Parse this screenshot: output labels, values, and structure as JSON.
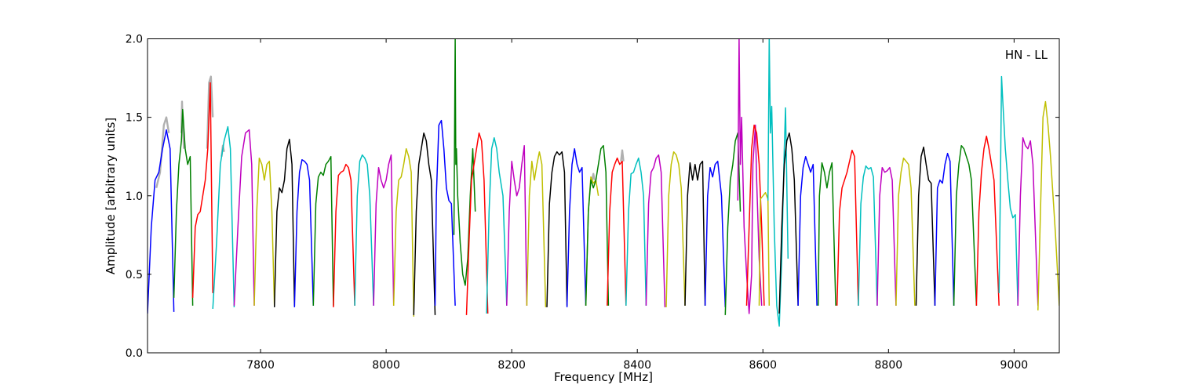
{
  "chart_data": {
    "type": "line",
    "xlabel": "Frequency [MHz]",
    "ylabel": "Amplitude [arbitrary units]",
    "annotation": "HN - LL",
    "annotation_position": "top-right",
    "xlim": [
      7620,
      9072
    ],
    "ylim": [
      0.0,
      2.0
    ],
    "xticks": [
      7800,
      8000,
      8200,
      8400,
      8600,
      8800,
      9000
    ],
    "xtick_labels": [
      "7800",
      "8000",
      "8200",
      "8400",
      "8600",
      "8800",
      "9000"
    ],
    "yticks": [
      0.0,
      0.5,
      1.0,
      1.5,
      2.0
    ],
    "ytick_labels": [
      "0.0",
      "0.5",
      "1.0",
      "1.5",
      "2.0"
    ],
    "grid": false,
    "colors": [
      "#0000ff",
      "#008000",
      "#ff0000",
      "#00bfbf",
      "#bf00bf",
      "#bfbf00",
      "#000000"
    ],
    "underlay_color": "#b0b0b0",
    "series": [
      {
        "color": "#0000ff",
        "x": [
          7620,
          7626,
          7632,
          7638,
          7644,
          7650,
          7656,
          7662
        ],
        "y": [
          0.25,
          0.8,
          1.1,
          1.15,
          1.3,
          1.42,
          1.3,
          0.26
        ]
      },
      {
        "color": "#008000",
        "x": [
          7662,
          7666,
          7670,
          7674,
          7676,
          7680,
          7684,
          7688,
          7692
        ],
        "y": [
          0.35,
          0.9,
          1.2,
          1.35,
          1.55,
          1.3,
          1.2,
          1.25,
          0.3
        ]
      },
      {
        "color": "#ff0000",
        "x": [
          7692,
          7696,
          7700,
          7704,
          7708,
          7712,
          7716,
          7720,
          7724
        ],
        "y": [
          0.35,
          0.8,
          0.88,
          0.9,
          1.0,
          1.1,
          1.3,
          1.72,
          0.38
        ]
      },
      {
        "color": "#00bfbf",
        "x": [
          7724,
          7730,
          7736,
          7742,
          7748,
          7752,
          7758
        ],
        "y": [
          0.28,
          0.7,
          1.2,
          1.35,
          1.44,
          1.3,
          0.29
        ]
      },
      {
        "color": "#bf00bf",
        "x": [
          7758,
          7764,
          7770,
          7776,
          7782,
          7786,
          7790
        ],
        "y": [
          0.3,
          0.8,
          1.25,
          1.4,
          1.42,
          1.2,
          0.3
        ]
      },
      {
        "color": "#bfbf00",
        "x": [
          7790,
          7794,
          7798,
          7802,
          7806,
          7810,
          7814,
          7818,
          7822
        ],
        "y": [
          0.3,
          0.9,
          1.24,
          1.2,
          1.1,
          1.2,
          1.22,
          0.9,
          0.3
        ]
      },
      {
        "color": "#000000",
        "x": [
          7822,
          7826,
          7830,
          7834,
          7838,
          7842,
          7846,
          7850,
          7854
        ],
        "y": [
          0.29,
          0.9,
          1.05,
          1.02,
          1.1,
          1.3,
          1.36,
          1.2,
          0.3
        ]
      },
      {
        "color": "#0000ff",
        "x": [
          7854,
          7858,
          7862,
          7866,
          7870,
          7874,
          7878,
          7884
        ],
        "y": [
          0.29,
          0.9,
          1.15,
          1.23,
          1.22,
          1.2,
          1.1,
          0.3
        ]
      },
      {
        "color": "#008000",
        "x": [
          7884,
          7888,
          7892,
          7896,
          7900,
          7904,
          7908,
          7912,
          7916
        ],
        "y": [
          0.3,
          0.95,
          1.12,
          1.15,
          1.13,
          1.2,
          1.22,
          1.25,
          0.3
        ]
      },
      {
        "color": "#ff0000",
        "x": [
          7916,
          7920,
          7924,
          7928,
          7932,
          7936,
          7940,
          7944,
          7950
        ],
        "y": [
          0.29,
          0.9,
          1.13,
          1.15,
          1.16,
          1.2,
          1.18,
          1.1,
          0.3
        ]
      },
      {
        "color": "#00bfbf",
        "x": [
          7950,
          7954,
          7958,
          7962,
          7966,
          7970,
          7974,
          7980
        ],
        "y": [
          0.3,
          1.0,
          1.22,
          1.26,
          1.24,
          1.2,
          1.0,
          0.3
        ]
      },
      {
        "color": "#bf00bf",
        "x": [
          7980,
          7984,
          7988,
          7992,
          7996,
          8000,
          8004,
          8008,
          8012
        ],
        "y": [
          0.3,
          0.95,
          1.18,
          1.1,
          1.05,
          1.1,
          1.2,
          1.26,
          0.3
        ]
      },
      {
        "color": "#bfbf00",
        "x": [
          8012,
          8016,
          8020,
          8024,
          8028,
          8032,
          8036,
          8040,
          8044
        ],
        "y": [
          0.3,
          0.9,
          1.1,
          1.12,
          1.2,
          1.3,
          1.25,
          1.15,
          0.23
        ]
      },
      {
        "color": "#000000",
        "x": [
          8044,
          8048,
          8052,
          8056,
          8060,
          8064,
          8068,
          8072,
          8078
        ],
        "y": [
          0.24,
          0.9,
          1.2,
          1.3,
          1.4,
          1.35,
          1.2,
          1.1,
          0.24
        ]
      },
      {
        "color": "#0000ff",
        "x": [
          8078,
          8080,
          8084,
          8088,
          8092,
          8096,
          8100,
          8104,
          8110
        ],
        "y": [
          0.3,
          1.0,
          1.45,
          1.48,
          1.3,
          1.05,
          0.97,
          0.95,
          0.3
        ]
      },
      {
        "color": "#008000",
        "x": [
          8108,
          8110,
          8111,
          8112,
          8114,
          8118,
          8122,
          8126,
          8130,
          8134,
          8138,
          8142
        ],
        "y": [
          0.75,
          2.0,
          1.2,
          1.3,
          1.0,
          0.7,
          0.5,
          0.43,
          0.6,
          1.0,
          1.3,
          0.9
        ]
      },
      {
        "color": "#ff0000",
        "x": [
          8128,
          8132,
          8136,
          8140,
          8144,
          8148,
          8152,
          8156,
          8162
        ],
        "y": [
          0.24,
          0.7,
          1.1,
          1.2,
          1.3,
          1.4,
          1.35,
          1.1,
          0.25
        ]
      },
      {
        "color": "#00bfbf",
        "x": [
          8160,
          8164,
          8168,
          8172,
          8176,
          8180,
          8186,
          8192
        ],
        "y": [
          0.25,
          0.9,
          1.3,
          1.37,
          1.3,
          1.15,
          1.0,
          0.3
        ]
      },
      {
        "color": "#bf00bf",
        "x": [
          8192,
          8196,
          8200,
          8204,
          8208,
          8212,
          8216,
          8220,
          8224
        ],
        "y": [
          0.3,
          0.9,
          1.22,
          1.1,
          1.0,
          1.05,
          1.2,
          1.32,
          0.3
        ]
      },
      {
        "color": "#bfbf00",
        "x": [
          8224,
          8228,
          8232,
          8236,
          8240,
          8244,
          8248,
          8254
        ],
        "y": [
          0.3,
          1.0,
          1.22,
          1.1,
          1.2,
          1.28,
          1.2,
          0.29
        ]
      },
      {
        "color": "#000000",
        "x": [
          8256,
          8260,
          8264,
          8268,
          8272,
          8276,
          8280,
          8284,
          8288
        ],
        "y": [
          0.29,
          0.95,
          1.15,
          1.25,
          1.28,
          1.26,
          1.28,
          1.15,
          0.3
        ]
      },
      {
        "color": "#0000ff",
        "x": [
          8288,
          8292,
          8296,
          8300,
          8304,
          8308,
          8312,
          8318
        ],
        "y": [
          0.29,
          0.9,
          1.2,
          1.3,
          1.2,
          1.15,
          1.18,
          0.3
        ]
      },
      {
        "color": "#bfbf00",
        "x": [
          8318,
          8322,
          8326,
          8330,
          8334,
          8338
        ],
        "y": [
          0.3,
          0.9,
          1.12,
          1.08,
          1.1,
          1.0
        ]
      },
      {
        "color": "#008000",
        "x": [
          8318,
          8322,
          8326,
          8330,
          8334,
          8338,
          8342,
          8346,
          8350,
          8354
        ],
        "y": [
          0.3,
          0.9,
          1.1,
          1.05,
          1.1,
          1.2,
          1.3,
          1.32,
          1.15,
          0.3
        ]
      },
      {
        "color": "#ff0000",
        "x": [
          8352,
          8356,
          8360,
          8364,
          8368,
          8372,
          8376,
          8382
        ],
        "y": [
          0.3,
          0.9,
          1.15,
          1.2,
          1.24,
          1.2,
          1.22,
          0.3
        ]
      },
      {
        "color": "#00bfbf",
        "x": [
          8382,
          8386,
          8390,
          8394,
          8398,
          8402,
          8406,
          8410,
          8414
        ],
        "y": [
          0.3,
          0.9,
          1.14,
          1.15,
          1.2,
          1.24,
          1.15,
          1.0,
          0.3
        ]
      },
      {
        "color": "#bf00bf",
        "x": [
          8414,
          8418,
          8422,
          8426,
          8430,
          8434,
          8438,
          8444
        ],
        "y": [
          0.3,
          0.95,
          1.15,
          1.18,
          1.24,
          1.26,
          1.15,
          0.29
        ]
      },
      {
        "color": "#bfbf00",
        "x": [
          8446,
          8450,
          8454,
          8458,
          8462,
          8466,
          8470,
          8476
        ],
        "y": [
          0.29,
          1.0,
          1.2,
          1.28,
          1.26,
          1.2,
          1.05,
          0.3
        ]
      },
      {
        "color": "#000000",
        "x": [
          8476,
          8480,
          8484,
          8488,
          8492,
          8496,
          8500,
          8504,
          8508
        ],
        "y": [
          0.3,
          1.0,
          1.21,
          1.1,
          1.2,
          1.1,
          1.2,
          1.22,
          0.3
        ]
      },
      {
        "color": "#0000ff",
        "x": [
          8508,
          8512,
          8516,
          8520,
          8524,
          8528,
          8534,
          8540
        ],
        "y": [
          0.3,
          1.0,
          1.18,
          1.12,
          1.2,
          1.22,
          1.0,
          0.29
        ]
      },
      {
        "color": "#008000",
        "x": [
          8540,
          8544,
          8548,
          8552,
          8556,
          8560,
          8564
        ],
        "y": [
          0.24,
          0.8,
          1.1,
          1.2,
          1.35,
          1.4,
          0.9
        ]
      },
      {
        "color": "#bf00bf",
        "x": [
          8560,
          8562,
          8564,
          8566,
          8570,
          8574,
          8578,
          8582,
          8584,
          8588,
          8590,
          8594,
          8598
        ],
        "y": [
          0.97,
          2.0,
          1.2,
          1.5,
          0.8,
          0.5,
          0.25,
          0.5,
          1.2,
          1.45,
          1.1,
          0.6,
          0.3
        ]
      },
      {
        "color": "#ff0000",
        "x": [
          8574,
          8578,
          8582,
          8586,
          8590,
          8594,
          8598,
          8602
        ],
        "y": [
          0.3,
          0.8,
          1.3,
          1.45,
          1.4,
          1.2,
          0.8,
          0.3
        ]
      },
      {
        "color": "#bfbf00",
        "x": [
          8594,
          8596,
          8600,
          8604,
          8608,
          8610
        ],
        "y": [
          0.3,
          0.98,
          1.0,
          1.02,
          0.98,
          0.3
        ]
      },
      {
        "color": "#00bfbf",
        "x": [
          8608,
          8610,
          8612,
          8614,
          8618,
          8622,
          8626,
          8630,
          8634,
          8636,
          8640
        ],
        "y": [
          0.97,
          2.0,
          1.4,
          1.57,
          0.8,
          0.3,
          0.17,
          0.6,
          1.3,
          1.56,
          0.6
        ]
      },
      {
        "color": "#000000",
        "x": [
          8626,
          8630,
          8634,
          8638,
          8642,
          8646,
          8650,
          8656
        ],
        "y": [
          0.25,
          0.8,
          1.2,
          1.35,
          1.4,
          1.3,
          1.1,
          0.3
        ]
      },
      {
        "color": "#0000ff",
        "x": [
          8656,
          8660,
          8664,
          8668,
          8672,
          8676,
          8680,
          8686
        ],
        "y": [
          0.3,
          1.0,
          1.18,
          1.25,
          1.2,
          1.15,
          1.2,
          0.3
        ]
      },
      {
        "color": "#008000",
        "x": [
          8688,
          8690,
          8694,
          8698,
          8702,
          8706,
          8710,
          8716
        ],
        "y": [
          0.3,
          1.0,
          1.21,
          1.15,
          1.05,
          1.15,
          1.21,
          0.3
        ]
      },
      {
        "color": "#ff0000",
        "x": [
          8718,
          8722,
          8726,
          8730,
          8734,
          8738,
          8742,
          8746,
          8752
        ],
        "y": [
          0.3,
          0.9,
          1.05,
          1.1,
          1.15,
          1.22,
          1.29,
          1.25,
          0.3
        ]
      },
      {
        "color": "#00bfbf",
        "x": [
          8752,
          8756,
          8760,
          8764,
          8768,
          8772,
          8776,
          8782
        ],
        "y": [
          0.3,
          0.95,
          1.12,
          1.19,
          1.17,
          1.18,
          1.12,
          0.3
        ]
      },
      {
        "color": "#bf00bf",
        "x": [
          8782,
          8786,
          8790,
          8794,
          8798,
          8802,
          8806,
          8812
        ],
        "y": [
          0.3,
          1.0,
          1.18,
          1.15,
          1.16,
          1.18,
          1.1,
          0.3
        ]
      },
      {
        "color": "#bfbf00",
        "x": [
          8812,
          8816,
          8820,
          8824,
          8828,
          8832,
          8836,
          8842
        ],
        "y": [
          0.3,
          1.0,
          1.15,
          1.24,
          1.22,
          1.2,
          1.05,
          0.3
        ]
      },
      {
        "color": "#000000",
        "x": [
          8844,
          8848,
          8852,
          8856,
          8860,
          8864,
          8868,
          8874
        ],
        "y": [
          0.3,
          1.0,
          1.25,
          1.31,
          1.2,
          1.1,
          1.08,
          0.3
        ]
      },
      {
        "color": "#0000ff",
        "x": [
          8874,
          8878,
          8882,
          8886,
          8890,
          8894,
          8898,
          8904
        ],
        "y": [
          0.3,
          1.05,
          1.1,
          1.08,
          1.2,
          1.27,
          1.22,
          0.3
        ]
      },
      {
        "color": "#008000",
        "x": [
          8904,
          8908,
          8912,
          8916,
          8920,
          8924,
          8928,
          8932,
          8940
        ],
        "y": [
          0.3,
          1.0,
          1.2,
          1.32,
          1.3,
          1.25,
          1.2,
          1.1,
          0.3
        ]
      },
      {
        "color": "#ff0000",
        "x": [
          8940,
          8944,
          8948,
          8952,
          8956,
          8960,
          8964,
          8968,
          8976
        ],
        "y": [
          0.3,
          0.9,
          1.15,
          1.3,
          1.38,
          1.3,
          1.2,
          1.1,
          0.3
        ]
      },
      {
        "color": "#00bfbf",
        "x": [
          8976,
          8978,
          8980,
          8982,
          8986,
          8990,
          8994,
          8998,
          9002,
          9006
        ],
        "y": [
          0.38,
          1.0,
          1.76,
          1.6,
          1.3,
          1.1,
          0.92,
          0.86,
          0.88,
          0.3
        ]
      },
      {
        "color": "#bf00bf",
        "x": [
          9006,
          9010,
          9014,
          9018,
          9022,
          9026,
          9030,
          9038
        ],
        "y": [
          0.3,
          1.0,
          1.37,
          1.32,
          1.3,
          1.35,
          1.2,
          0.3
        ]
      },
      {
        "color": "#bfbf00",
        "x": [
          9038,
          9042,
          9046,
          9050,
          9054,
          9058,
          9062,
          9066,
          9072
        ],
        "y": [
          0.27,
          0.9,
          1.5,
          1.6,
          1.45,
          1.25,
          1.0,
          0.75,
          0.3
        ]
      }
    ],
    "underlay": [
      {
        "x": [
          7634,
          7640,
          7646,
          7650,
          7654
        ],
        "y": [
          1.05,
          1.15,
          1.45,
          1.5,
          1.4
        ]
      },
      {
        "x": [
          7674,
          7675,
          7676,
          7678
        ],
        "y": [
          1.4,
          1.6,
          1.45,
          1.3
        ]
      },
      {
        "x": [
          7715,
          7718,
          7721,
          7724
        ],
        "y": [
          1.3,
          1.72,
          1.76,
          1.5
        ]
      },
      {
        "x": [
          7738,
          7740,
          7742
        ],
        "y": [
          1.25,
          1.32,
          1.28
        ]
      },
      {
        "x": [
          8328,
          8330,
          8332
        ],
        "y": [
          1.1,
          1.14,
          1.1
        ]
      },
      {
        "x": [
          8374,
          8376,
          8378
        ],
        "y": [
          1.22,
          1.29,
          1.22
        ]
      }
    ]
  }
}
